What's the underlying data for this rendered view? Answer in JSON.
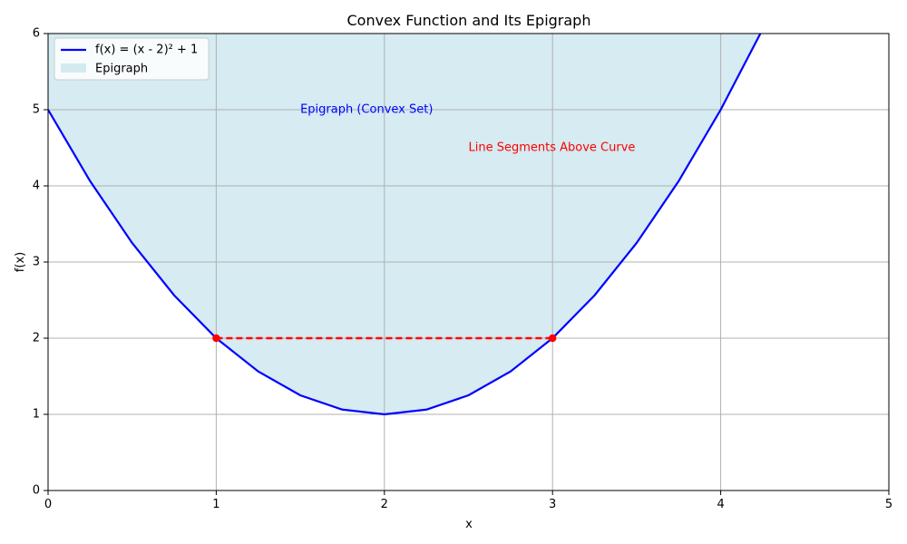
{
  "chart_data": {
    "type": "line",
    "title": "Convex Function and Its Epigraph",
    "xlabel": "x",
    "ylabel": "f(x)",
    "xlim": [
      0,
      5
    ],
    "ylim": [
      0,
      6
    ],
    "xticks": [
      0,
      1,
      2,
      3,
      4,
      5
    ],
    "yticks": [
      0,
      1,
      2,
      3,
      4,
      5,
      6
    ],
    "grid": true,
    "legend_position": "top-left",
    "series": [
      {
        "name": "f(x) = (x - 2)² + 1",
        "kind": "curve",
        "color": "#0000ff",
        "x": [
          0,
          0.25,
          0.5,
          0.75,
          1,
          1.25,
          1.5,
          1.75,
          2,
          2.25,
          2.5,
          2.75,
          3,
          3.25,
          3.5,
          3.75,
          4,
          4.236
        ],
        "y": [
          5,
          4.0625,
          3.25,
          2.5625,
          2,
          1.5625,
          1.25,
          1.0625,
          1,
          1.0625,
          1.25,
          1.5625,
          2,
          2.5625,
          3.25,
          4.0625,
          5,
          6
        ]
      },
      {
        "name": "Epigraph",
        "kind": "fill-above",
        "color": "#add8e6"
      }
    ],
    "segment": {
      "color": "#ff0000",
      "points": [
        {
          "x": 1,
          "y": 2
        },
        {
          "x": 3,
          "y": 2
        }
      ]
    },
    "annotations": [
      {
        "text": "Epigraph (Convex Set)",
        "x": 1.5,
        "y": 5,
        "color": "#0000ff"
      },
      {
        "text": "Line Segments Above Curve",
        "x": 2.5,
        "y": 4.5,
        "color": "#ff0000"
      }
    ]
  }
}
